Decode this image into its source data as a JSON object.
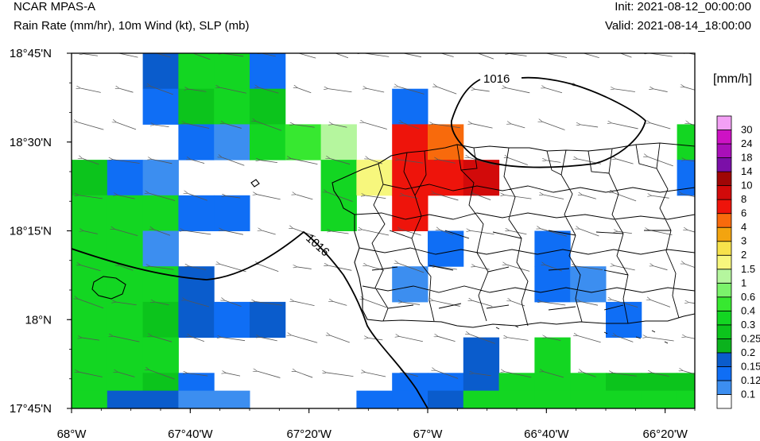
{
  "header": {
    "model": "NCAR MPAS-A",
    "fields": "Rain Rate (mm/hr), 10m Wind (kt), SLP (mb)",
    "init": "Init: 2021-08-12_00:00:00",
    "valid": "Valid: 2021-08-14_18:00:00"
  },
  "map": {
    "lon_range": [
      -68.0,
      -66.25
    ],
    "lat_range": [
      17.75,
      18.75
    ],
    "x_ticks": [
      {
        "lon": -68.0,
        "label": "68°W"
      },
      {
        "lon": -67.6667,
        "label": "67°40'W"
      },
      {
        "lon": -67.3333,
        "label": "67°20'W"
      },
      {
        "lon": -67.0,
        "label": "67°W"
      },
      {
        "lon": -66.6667,
        "label": "66°40'W"
      },
      {
        "lon": -66.3333,
        "label": "66°20'W"
      }
    ],
    "y_ticks": [
      {
        "lat": 18.75,
        "label": "18°45'N"
      },
      {
        "lat": 18.5,
        "label": "18°30'N"
      },
      {
        "lat": 18.25,
        "label": "18°15'N"
      },
      {
        "lat": 18.0,
        "label": "18°N"
      },
      {
        "lat": 17.75,
        "label": "17°45'N"
      }
    ],
    "isobar_label": "1016",
    "isobar_value": 1016
  },
  "colorbar": {
    "unit": "[mm/h]",
    "levels": [
      "0.1",
      "0.12",
      "0.15",
      "0.2",
      "0.25",
      "0.3",
      "0.4",
      "0.6",
      "1",
      "1.5",
      "2",
      "3",
      "4",
      "6",
      "8",
      "10",
      "14",
      "18",
      "24",
      "30"
    ],
    "colors": [
      "#ffffff",
      "#3c8ef0",
      "#0f6ef5",
      "#0a5ccc",
      "#0bb21d",
      "#0cc41c",
      "#13d622",
      "#37e830",
      "#7bf36b",
      "#b5f69e",
      "#f7f77d",
      "#f7e24b",
      "#f3a40f",
      "#f86a0c",
      "#ee140b",
      "#d20a0a",
      "#a00606",
      "#7b0fa8",
      "#a90fb9",
      "#cd12c4",
      "#f3a0f5"
    ]
  },
  "chart_data": {
    "type": "heatmap",
    "title": "Rain Rate (mm/hr), 10m Wind (kt), SLP (mb)",
    "grid": {
      "lon0": -68.0,
      "lat_top": 18.75,
      "dlon": 0.1,
      "lat_rows": [
        18.75,
        18.65,
        18.55,
        18.45,
        18.35,
        18.25,
        18.15,
        18.05,
        17.95,
        17.85,
        17.8
      ],
      "row_heights_deg": [
        0.1,
        0.1,
        0.1,
        0.1,
        0.1,
        0.1,
        0.1,
        0.1,
        0.1,
        0.05,
        0.05
      ],
      "bins": [
        [
          0,
          0,
          3,
          6,
          6,
          2,
          0,
          0,
          0,
          0,
          0,
          0,
          0,
          0,
          0,
          0,
          0,
          0
        ],
        [
          0,
          0,
          2,
          5,
          6,
          5,
          0,
          0,
          0,
          2,
          0,
          0,
          0,
          0,
          0,
          0,
          0,
          0
        ],
        [
          0,
          0,
          0,
          2,
          1,
          6,
          7,
          9,
          0,
          14,
          13,
          0,
          0,
          0,
          0,
          0,
          0,
          6
        ],
        [
          5,
          2,
          1,
          0,
          0,
          0,
          0,
          6,
          10,
          14,
          14,
          15,
          0,
          0,
          0,
          0,
          0,
          2
        ],
        [
          6,
          6,
          6,
          2,
          2,
          0,
          0,
          6,
          0,
          14,
          0,
          0,
          0,
          0,
          0,
          0,
          0,
          0
        ],
        [
          6,
          6,
          1,
          0,
          0,
          0,
          0,
          0,
          0,
          0,
          2,
          0,
          0,
          2,
          0,
          0,
          0,
          0
        ],
        [
          6,
          6,
          6,
          3,
          0,
          0,
          0,
          0,
          0,
          1,
          0,
          0,
          0,
          2,
          1,
          0,
          0,
          0
        ],
        [
          6,
          6,
          5,
          3,
          2,
          3,
          0,
          0,
          0,
          0,
          0,
          0,
          0,
          0,
          0,
          2,
          0,
          0
        ],
        [
          6,
          6,
          6,
          0,
          0,
          0,
          0,
          0,
          0,
          0,
          0,
          3,
          0,
          6,
          0,
          0,
          0,
          0
        ],
        [
          6,
          6,
          5,
          2,
          0,
          0,
          0,
          0,
          0,
          2,
          2,
          3,
          6,
          6,
          6,
          5,
          5,
          5
        ],
        [
          6,
          3,
          3,
          1,
          1,
          0,
          0,
          0,
          2,
          2,
          3,
          6,
          6,
          6,
          6,
          6,
          6,
          6
        ]
      ]
    }
  }
}
